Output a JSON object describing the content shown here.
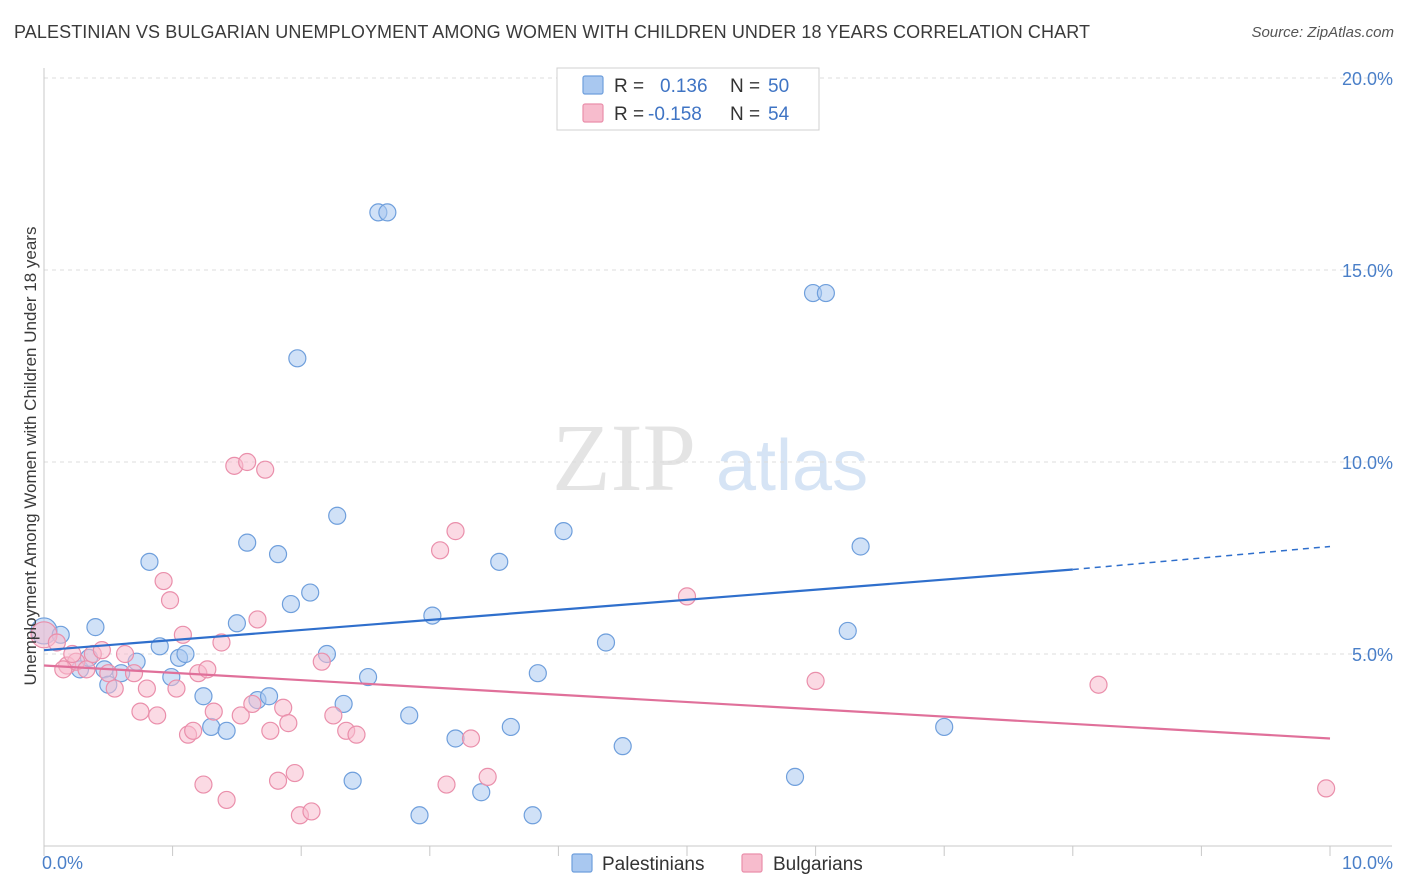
{
  "title": "PALESTINIAN VS BULGARIAN UNEMPLOYMENT AMONG WOMEN WITH CHILDREN UNDER 18 YEARS CORRELATION CHART",
  "source": "Source: ZipAtlas.com",
  "watermark": {
    "zip": "ZIP",
    "atlas": "atlas"
  },
  "legend_box": {
    "rows": [
      {
        "r_label": "R =",
        "r_value": "0.136",
        "n_label": "N =",
        "n_value": "50"
      },
      {
        "r_label": "R =",
        "r_value": "-0.158",
        "n_label": "N =",
        "n_value": "54"
      }
    ]
  },
  "colors": {
    "palestinians_fill": "#a9c8f0",
    "palestinians_stroke": "#6f9fdc",
    "palestinians_line": "#2f6fcc",
    "bulgarians_fill": "#f7bccd",
    "bulgarians_stroke": "#ea8fab",
    "bulgarians_line": "#e0709a",
    "tick_text": "#4a7fc8",
    "grid": "#dcdcdc"
  },
  "chart_data": {
    "type": "scatter",
    "xlabel": "",
    "ylabel": "Unemployment Among Women with Children Under 18 years",
    "xlim": [
      0,
      10
    ],
    "ylim": [
      0,
      20
    ],
    "x_tick_labels": [
      "0.0%",
      "10.0%"
    ],
    "y_tick_labels": [
      "5.0%",
      "10.0%",
      "15.0%",
      "20.0%"
    ],
    "y_ticks": [
      5,
      10,
      15,
      20
    ],
    "grid": true,
    "legend": [
      "Palestinians",
      "Bulgarians"
    ],
    "series": [
      {
        "name": "Palestinians",
        "r": 0.136,
        "n": 50,
        "trend": {
          "x0": 0,
          "y0": 5.1,
          "x1": 8.0,
          "y1": 7.2,
          "dash_to_x": 10.0,
          "dash_to_y": 7.8
        },
        "points": [
          [
            0.0,
            5.6
          ],
          [
            0.13,
            5.5
          ],
          [
            0.4,
            5.7
          ],
          [
            0.47,
            4.6
          ],
          [
            0.28,
            4.6
          ],
          [
            0.6,
            4.5
          ],
          [
            0.72,
            4.8
          ],
          [
            0.82,
            7.4
          ],
          [
            0.9,
            5.2
          ],
          [
            0.99,
            4.4
          ],
          [
            1.05,
            4.9
          ],
          [
            1.1,
            5.0
          ],
          [
            1.24,
            3.9
          ],
          [
            1.3,
            3.1
          ],
          [
            1.42,
            3.0
          ],
          [
            1.5,
            5.8
          ],
          [
            1.58,
            7.9
          ],
          [
            1.66,
            3.8
          ],
          [
            1.75,
            3.9
          ],
          [
            1.82,
            7.6
          ],
          [
            1.92,
            6.3
          ],
          [
            1.97,
            12.7
          ],
          [
            2.07,
            6.6
          ],
          [
            2.2,
            5.0
          ],
          [
            2.28,
            8.6
          ],
          [
            2.33,
            3.7
          ],
          [
            2.4,
            1.7
          ],
          [
            2.52,
            4.4
          ],
          [
            2.6,
            16.5
          ],
          [
            2.67,
            16.5
          ],
          [
            2.84,
            3.4
          ],
          [
            2.92,
            0.8
          ],
          [
            3.02,
            6.0
          ],
          [
            3.2,
            2.8
          ],
          [
            3.4,
            1.4
          ],
          [
            3.54,
            7.4
          ],
          [
            3.63,
            3.1
          ],
          [
            3.8,
            0.8
          ],
          [
            3.84,
            4.5
          ],
          [
            4.04,
            8.2
          ],
          [
            4.37,
            5.3
          ],
          [
            4.5,
            2.6
          ],
          [
            5.84,
            1.8
          ],
          [
            5.98,
            14.4
          ],
          [
            6.08,
            14.4
          ],
          [
            6.25,
            5.6
          ],
          [
            6.35,
            7.8
          ],
          [
            7.0,
            3.1
          ],
          [
            0.5,
            4.2
          ],
          [
            0.35,
            4.9
          ]
        ]
      },
      {
        "name": "Bulgarians",
        "r": -0.158,
        "n": 54,
        "trend": {
          "x0": 0,
          "y0": 4.7,
          "x1": 10.0,
          "y1": 2.8
        },
        "points": [
          [
            0.0,
            5.5
          ],
          [
            0.1,
            5.3
          ],
          [
            0.18,
            4.7
          ],
          [
            0.25,
            4.8
          ],
          [
            0.33,
            4.6
          ],
          [
            0.38,
            5.0
          ],
          [
            0.45,
            5.1
          ],
          [
            0.5,
            4.5
          ],
          [
            0.55,
            4.1
          ],
          [
            0.63,
            5.0
          ],
          [
            0.7,
            4.5
          ],
          [
            0.75,
            3.5
          ],
          [
            0.8,
            4.1
          ],
          [
            0.88,
            3.4
          ],
          [
            0.93,
            6.9
          ],
          [
            0.98,
            6.4
          ],
          [
            1.03,
            4.1
          ],
          [
            1.08,
            5.5
          ],
          [
            1.12,
            2.9
          ],
          [
            1.16,
            3.0
          ],
          [
            1.2,
            4.5
          ],
          [
            1.24,
            1.6
          ],
          [
            1.27,
            4.6
          ],
          [
            1.32,
            3.5
          ],
          [
            1.38,
            5.3
          ],
          [
            1.42,
            1.2
          ],
          [
            1.48,
            9.9
          ],
          [
            1.53,
            3.4
          ],
          [
            1.58,
            10.0
          ],
          [
            1.62,
            3.7
          ],
          [
            1.66,
            5.9
          ],
          [
            1.72,
            9.8
          ],
          [
            1.76,
            3.0
          ],
          [
            1.82,
            1.7
          ],
          [
            1.86,
            3.6
          ],
          [
            1.9,
            3.2
          ],
          [
            1.95,
            1.9
          ],
          [
            1.99,
            0.8
          ],
          [
            2.08,
            0.9
          ],
          [
            2.16,
            4.8
          ],
          [
            2.25,
            3.4
          ],
          [
            2.35,
            3.0
          ],
          [
            2.43,
            2.9
          ],
          [
            3.08,
            7.7
          ],
          [
            3.13,
            1.6
          ],
          [
            3.2,
            8.2
          ],
          [
            3.32,
            2.8
          ],
          [
            3.45,
            1.8
          ],
          [
            5.0,
            6.5
          ],
          [
            6.0,
            4.3
          ],
          [
            8.2,
            4.2
          ],
          [
            9.97,
            1.5
          ],
          [
            0.22,
            5.0
          ],
          [
            0.15,
            4.6
          ]
        ]
      }
    ]
  }
}
